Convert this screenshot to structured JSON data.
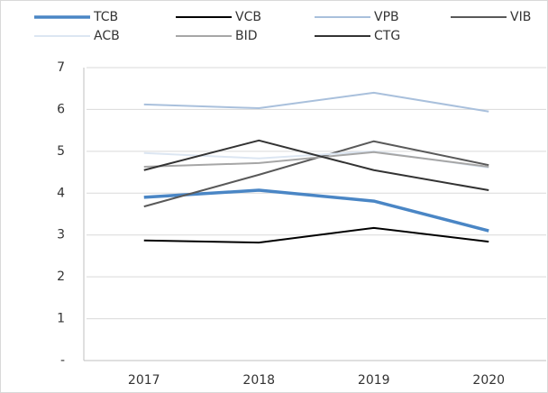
{
  "chart_data": {
    "type": "line",
    "categories": [
      "2017",
      "2018",
      "2019",
      "2020"
    ],
    "series": [
      {
        "name": "TCB",
        "color": "#4a86c5",
        "width": 3.5,
        "values": [
          3.9,
          4.07,
          3.81,
          3.1
        ]
      },
      {
        "name": "VCB",
        "color": "#000000",
        "width": 2,
        "values": [
          2.87,
          2.82,
          3.17,
          2.84
        ]
      },
      {
        "name": "VPB",
        "color": "#a9c0dc",
        "width": 2,
        "values": [
          6.12,
          6.03,
          6.4,
          5.95
        ]
      },
      {
        "name": "VIB",
        "color": "#595959",
        "width": 2,
        "values": [
          3.68,
          4.44,
          5.24,
          4.67
        ]
      },
      {
        "name": "ACB",
        "color": "#dce6f2",
        "width": 2,
        "values": [
          4.96,
          4.83,
          5.0,
          4.61
        ]
      },
      {
        "name": "BID",
        "color": "#a6a6a6",
        "width": 2,
        "values": [
          4.63,
          4.72,
          4.98,
          4.63
        ]
      },
      {
        "name": "CTG",
        "color": "#333333",
        "width": 2,
        "values": [
          4.55,
          5.26,
          4.55,
          4.07
        ]
      }
    ],
    "ylim": [
      0,
      7
    ],
    "yticks": [
      {
        "value": 0,
        "label": "-"
      },
      1,
      2,
      3,
      4,
      5,
      6,
      7
    ],
    "grid": true,
    "legend": "top"
  }
}
